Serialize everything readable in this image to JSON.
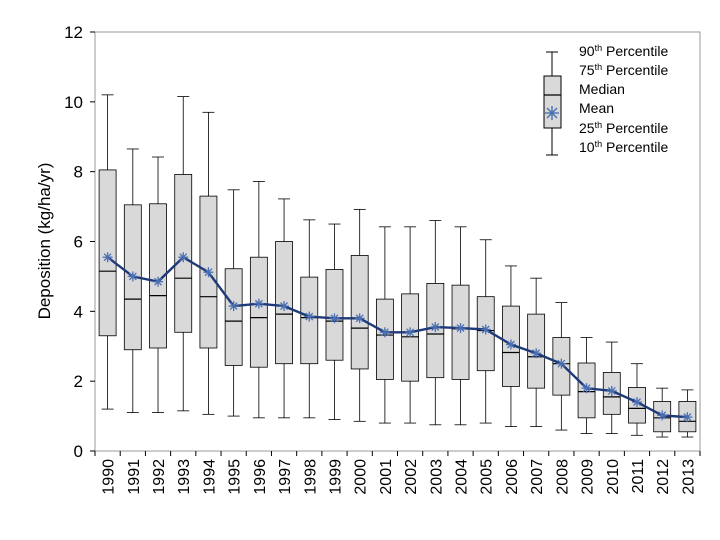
{
  "chart_data": {
    "type": "box",
    "ylabel": "Deposition (kg/ha/yr)",
    "xlabel": "",
    "ylim": [
      0,
      12
    ],
    "yticks": [
      0,
      2,
      4,
      6,
      8,
      10,
      12
    ],
    "categories": [
      "1990",
      "1991",
      "1992",
      "1993",
      "1994",
      "1995",
      "1996",
      "1997",
      "1998",
      "1999",
      "2000",
      "2001",
      "2002",
      "2003",
      "2004",
      "2005",
      "2006",
      "2007",
      "2008",
      "2009",
      "2010",
      "2011",
      "2012",
      "2013"
    ],
    "p10": [
      1.2,
      1.1,
      1.1,
      1.15,
      1.05,
      1.0,
      0.95,
      0.95,
      0.95,
      0.9,
      0.85,
      0.8,
      0.8,
      0.75,
      0.75,
      0.8,
      0.7,
      0.7,
      0.6,
      0.5,
      0.5,
      0.45,
      0.4,
      0.4
    ],
    "p25": [
      3.3,
      2.9,
      2.95,
      3.4,
      2.95,
      2.45,
      2.4,
      2.5,
      2.5,
      2.6,
      2.35,
      2.05,
      2.0,
      2.1,
      2.05,
      2.3,
      1.85,
      1.8,
      1.6,
      0.95,
      1.05,
      0.8,
      0.55,
      0.55
    ],
    "median": [
      5.15,
      4.35,
      4.45,
      4.95,
      4.42,
      3.72,
      3.82,
      3.92,
      3.82,
      3.72,
      3.52,
      3.32,
      3.27,
      3.35,
      3.5,
      3.45,
      2.82,
      2.7,
      2.5,
      1.7,
      1.55,
      1.22,
      0.95,
      0.85
    ],
    "mean": [
      5.55,
      5.0,
      4.85,
      5.55,
      5.12,
      4.15,
      4.22,
      4.15,
      3.85,
      3.8,
      3.8,
      3.4,
      3.4,
      3.55,
      3.52,
      3.48,
      3.05,
      2.8,
      2.5,
      1.8,
      1.72,
      1.4,
      1.02,
      0.97
    ],
    "p75": [
      8.05,
      7.05,
      7.08,
      7.92,
      7.3,
      5.22,
      5.55,
      6.0,
      4.98,
      5.2,
      5.6,
      4.35,
      4.5,
      4.8,
      4.75,
      4.42,
      4.15,
      3.92,
      3.25,
      2.52,
      2.25,
      1.82,
      1.42,
      1.42
    ],
    "p90": [
      10.2,
      8.65,
      8.42,
      10.15,
      9.7,
      7.48,
      7.72,
      7.22,
      6.62,
      6.5,
      6.92,
      6.42,
      6.42,
      6.6,
      6.42,
      6.05,
      5.3,
      4.95,
      4.25,
      3.25,
      3.12,
      2.5,
      1.8,
      1.75
    ],
    "legend": {
      "position": "top-right",
      "entries": [
        "90th Percentile",
        "75th Percentile",
        "Median",
        "Mean",
        "25th Percentile",
        "10th Percentile"
      ]
    },
    "colors": {
      "box_fill": "#d9d9d9",
      "box_stroke": "#000000",
      "mean_line": "#1f3a7a",
      "mean_marker": "#4a6fb3"
    }
  }
}
